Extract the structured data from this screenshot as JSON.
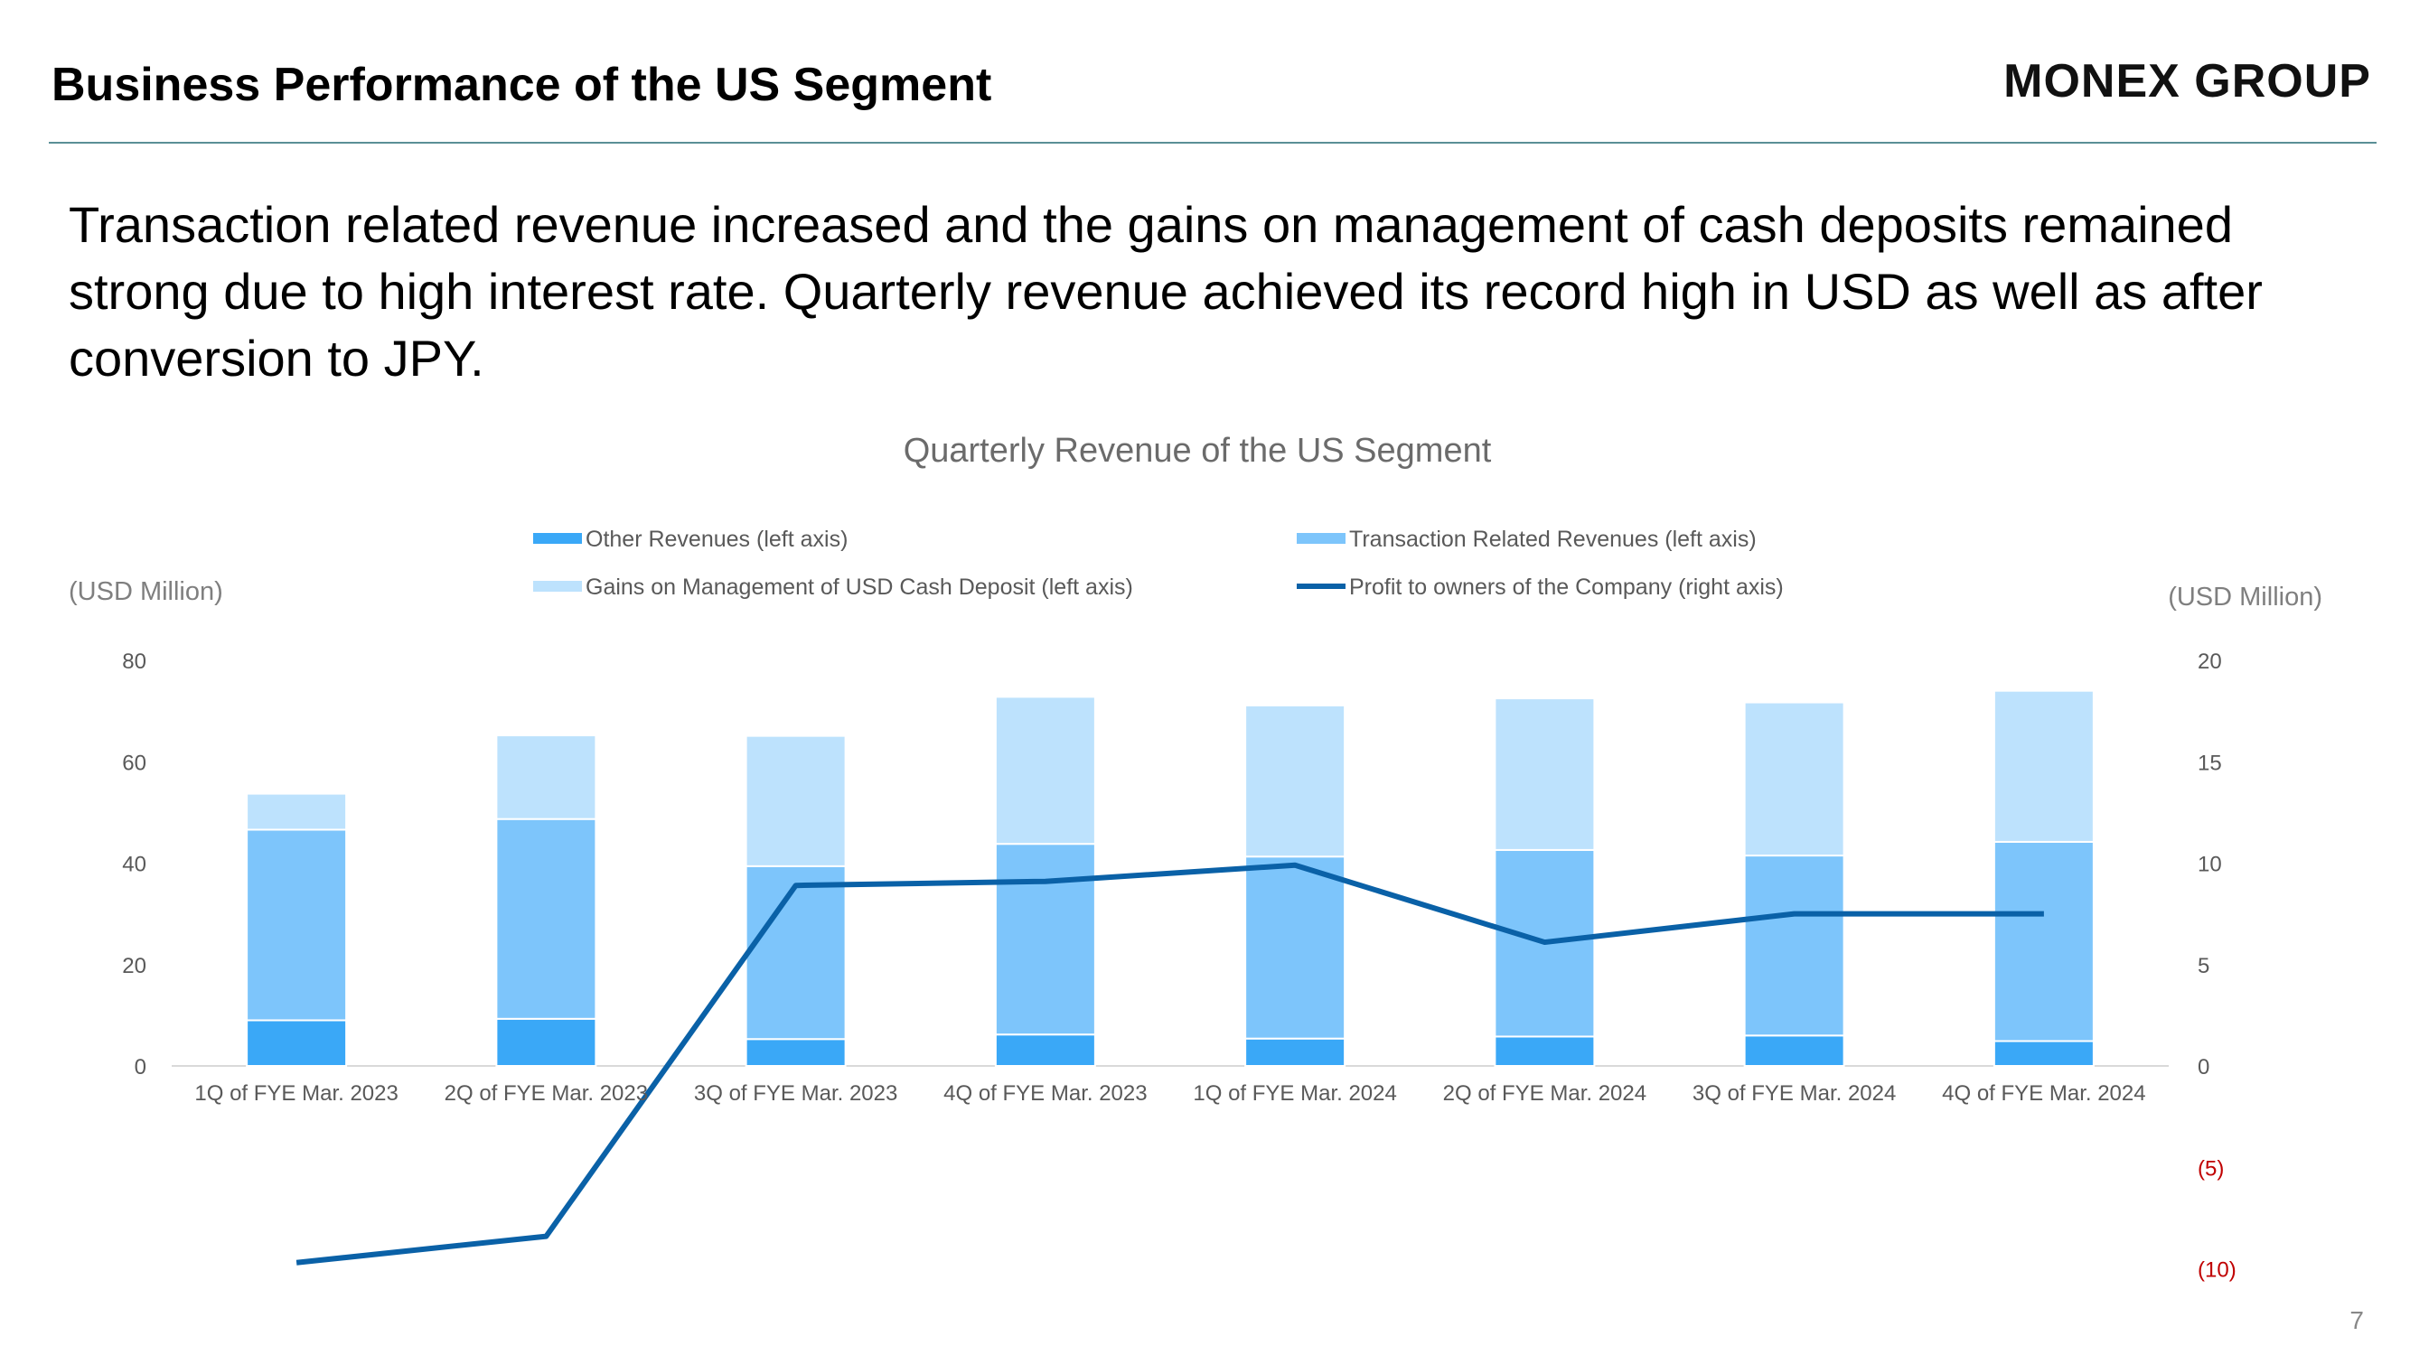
{
  "header": {
    "title": "Business Performance of the US Segment",
    "logo": "MONEX GROUP"
  },
  "lead_text": "Transaction related revenue increased and the gains on management of cash deposits remained strong due to high interest rate. Quarterly revenue achieved its record high in USD as well as after conversion to JPY.",
  "page_number": "7",
  "colors": {
    "other_revenues": "#3aa8f7",
    "transaction_related": "#7dc5fb",
    "gains_cash_deposit": "#bde2fd",
    "profit_line": "#0a61a7",
    "negative_tick": "#c00000"
  },
  "chart_data": {
    "type": "bar",
    "stacked": true,
    "title": "Quarterly Revenue of the US Segment",
    "ylabel_left": "(USD Million)",
    "ylabel_right": "(USD Million)",
    "categories": [
      "1Q of FYE Mar. 2023",
      "2Q of FYE Mar. 2023",
      "3Q of FYE Mar. 2023",
      "4Q of FYE Mar. 2023",
      "1Q of FYE Mar. 2024",
      "2Q of FYE Mar. 2024",
      "3Q of FYE Mar. 2024",
      "4Q of FYE Mar. 2024"
    ],
    "ylim_left": [
      0,
      80
    ],
    "yticks_left": [
      "0",
      "20",
      "40",
      "60",
      "80"
    ],
    "ylim_right": [
      -10,
      20
    ],
    "yticks_right": [
      "(10)",
      "(5)",
      "0",
      "5",
      "10",
      "15",
      "20"
    ],
    "series": [
      {
        "name": "Other Revenues (left axis)",
        "type": "bar",
        "axis": "left",
        "values": [
          9,
          9.3,
          5.3,
          6.2,
          5.4,
          5.8,
          6.0,
          4.9
        ]
      },
      {
        "name": "Transaction Related Revenues  (left axis)",
        "type": "bar",
        "axis": "left",
        "values": [
          37.6,
          39.4,
          34.1,
          37.6,
          35.9,
          36.8,
          35.5,
          39.3
        ]
      },
      {
        "name": "Gains on Management of USD Cash Deposit (left axis)",
        "type": "bar",
        "axis": "left",
        "values": [
          7.1,
          16.5,
          25.7,
          29.0,
          29.8,
          29.9,
          30.2,
          29.8
        ]
      },
      {
        "name": "Profit to owners of the Company (right axis)",
        "type": "line",
        "axis": "right",
        "values": [
          -9.7,
          -8.4,
          8.9,
          9.1,
          9.9,
          6.1,
          7.5,
          7.5
        ]
      }
    ],
    "legend_position": "top",
    "grid": false
  }
}
